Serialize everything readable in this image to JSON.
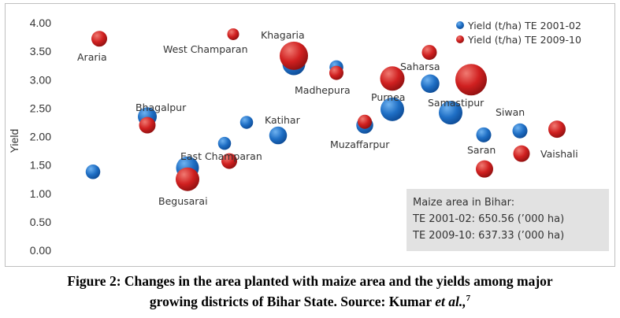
{
  "chart_data": {
    "type": "scatter",
    "ylabel": "Yield",
    "ylim": [
      0,
      4
    ],
    "yticks": [
      "0.00",
      "0.50",
      "1.00",
      "1.50",
      "2.00",
      "2.50",
      "3.00",
      "3.50",
      "4.00"
    ],
    "grid": false,
    "legend_position": "top-right",
    "series": [
      {
        "name": "Yield (t/ha) TE 2001-02",
        "color": "#1f6fc5",
        "points": [
          {
            "label": "Araria",
            "y": 1.38,
            "area_ha": 37
          },
          {
            "label": "Bhagalpur",
            "y": 2.35,
            "area_ha": 48
          },
          {
            "label": "Begusarai",
            "y": 1.45,
            "area_ha": 58
          },
          {
            "label": "East Champaran",
            "y": 1.88,
            "area_ha": 33
          },
          {
            "label": "West Champaran",
            "y": 2.25,
            "area_ha": 33
          },
          {
            "label": "Katihar",
            "y": 2.02,
            "area_ha": 45
          },
          {
            "label": "Khagaria",
            "y": 3.28,
            "area_ha": 58
          },
          {
            "label": "Madhepura",
            "y": 3.22,
            "area_ha": 35
          },
          {
            "label": "Muzaffarpur",
            "y": 2.2,
            "area_ha": 43
          },
          {
            "label": "Purnea",
            "y": 2.48,
            "area_ha": 60
          },
          {
            "label": "Saharsa",
            "y": 2.93,
            "area_ha": 47
          },
          {
            "label": "Samastipur",
            "y": 2.42,
            "area_ha": 60
          },
          {
            "label": "Saran",
            "y": 2.03,
            "area_ha": 38
          },
          {
            "label": "Siwan",
            "y": 2.1,
            "area_ha": 38
          }
        ]
      },
      {
        "name": "Yield (t/ha) TE 2009-10",
        "color": "#d02020",
        "points": [
          {
            "label": "Araria",
            "y": 3.72,
            "area_ha": 40
          },
          {
            "label": "Bhagalpur",
            "y": 2.2,
            "area_ha": 42
          },
          {
            "label": "Begusarai",
            "y": 1.25,
            "area_ha": 60
          },
          {
            "label": "East Champaran",
            "y": 1.57,
            "area_ha": 40
          },
          {
            "label": "West Champaran",
            "y": 3.8,
            "area_ha": 30
          },
          {
            "label": "Khagaria",
            "y": 3.42,
            "area_ha": 72
          },
          {
            "label": "Madhepura",
            "y": 3.12,
            "area_ha": 36
          },
          {
            "label": "Muzaffarpur",
            "y": 2.26,
            "area_ha": 36
          },
          {
            "label": "Purnea",
            "y": 3.02,
            "area_ha": 62
          },
          {
            "label": "Saharsa",
            "y": 3.48,
            "area_ha": 38
          },
          {
            "label": "Samastipur",
            "y": 3.0,
            "area_ha": 80
          },
          {
            "label": "Saran",
            "y": 1.43,
            "area_ha": 44
          },
          {
            "label": "Vaishali",
            "y": 1.7,
            "area_ha": 42
          },
          {
            "label": "Siwan",
            "y": 2.13,
            "area_ha": 44
          }
        ]
      }
    ],
    "district_labels": [
      "Araria",
      "West Champaran",
      "Khagaria",
      "Madhepura",
      "Saharsa",
      "Purnea",
      "Samastipur",
      "Siwan",
      "Bhagalpur",
      "Katihar",
      "East Champaran",
      "Muzaffarpur",
      "Saran",
      "Vaishali",
      "Begusarai"
    ],
    "info_box": {
      "title": "Maize area in Bihar:",
      "line1": "TE 2001-02: 650.56 (’000 ha)",
      "line2": "TE 2009-10: 637.33 (’000 ha)"
    }
  },
  "caption": {
    "line1": "Figure 2: Changes in the area planted with maize area and the yields among major",
    "line2_prefix": "growing districts of Bihar State. Source: Kumar ",
    "line2_italic": "et al.,",
    "line2_sup": "7"
  }
}
